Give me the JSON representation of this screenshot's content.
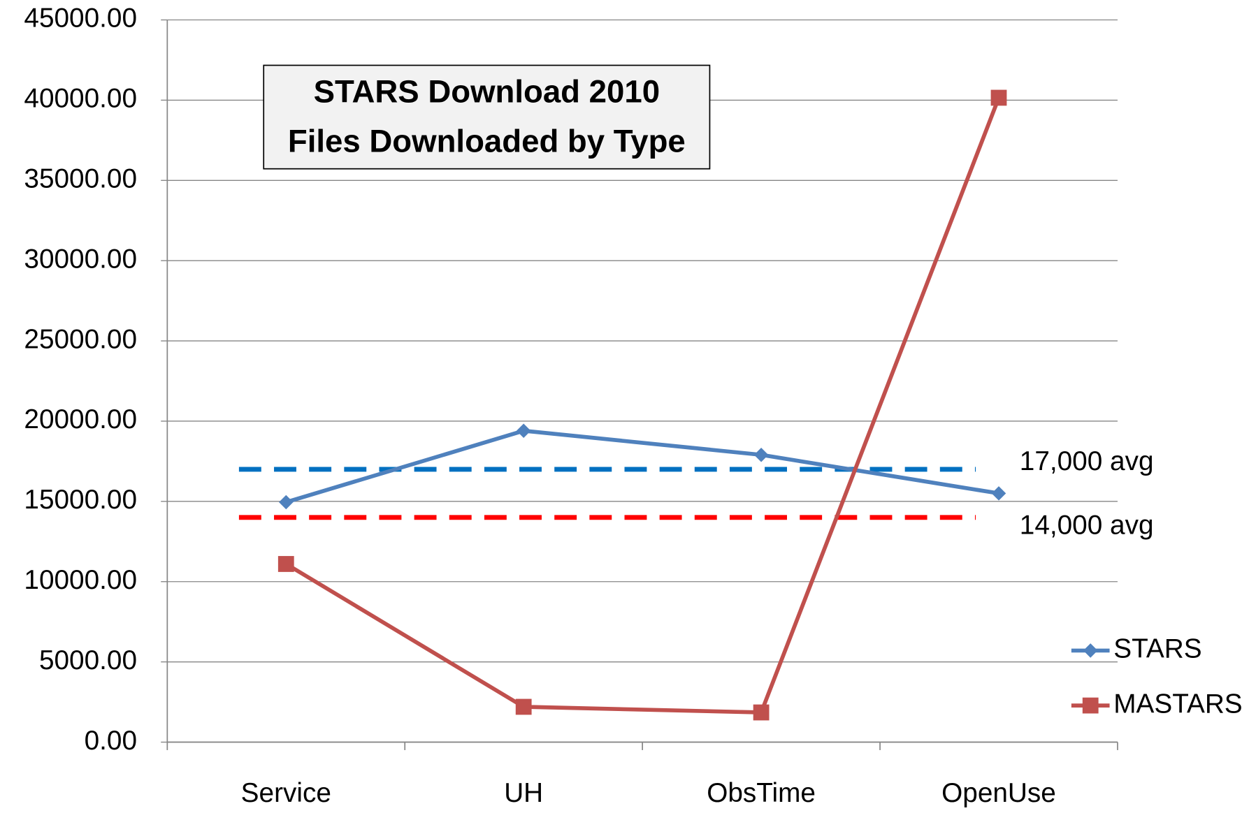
{
  "chart_data": {
    "type": "line",
    "title": [
      "STARS Download 2010",
      "Files Downloaded by Type"
    ],
    "categories": [
      "Service",
      "UH",
      "ObsTime",
      "OpenUse"
    ],
    "series": [
      {
        "name": "STARS",
        "color": "#4f81bd",
        "marker": "diamond",
        "values": [
          14950,
          19400,
          17900,
          15500
        ]
      },
      {
        "name": "MASTARS",
        "color": "#c0504d",
        "marker": "square",
        "values": [
          11100,
          2200,
          1850,
          40150
        ]
      }
    ],
    "annotations": [
      {
        "text": "17,000 avg",
        "value": 17000,
        "color": "#0070c0"
      },
      {
        "text": "14,000 avg",
        "value": 14000,
        "color": "#ff0000"
      }
    ],
    "ylim": [
      0,
      45000
    ],
    "yticks": [
      {
        "value": 0,
        "label": "0.00"
      },
      {
        "value": 5000,
        "label": "5000.00"
      },
      {
        "value": 10000,
        "label": "10000.00"
      },
      {
        "value": 15000,
        "label": "15000.00"
      },
      {
        "value": 20000,
        "label": "20000.00"
      },
      {
        "value": 25000,
        "label": "25000.00"
      },
      {
        "value": 30000,
        "label": "30000.00"
      },
      {
        "value": 35000,
        "label": "35000.00"
      },
      {
        "value": 40000,
        "label": "40000.00"
      },
      {
        "value": 45000,
        "label": "45000.00"
      }
    ],
    "grid": true
  }
}
